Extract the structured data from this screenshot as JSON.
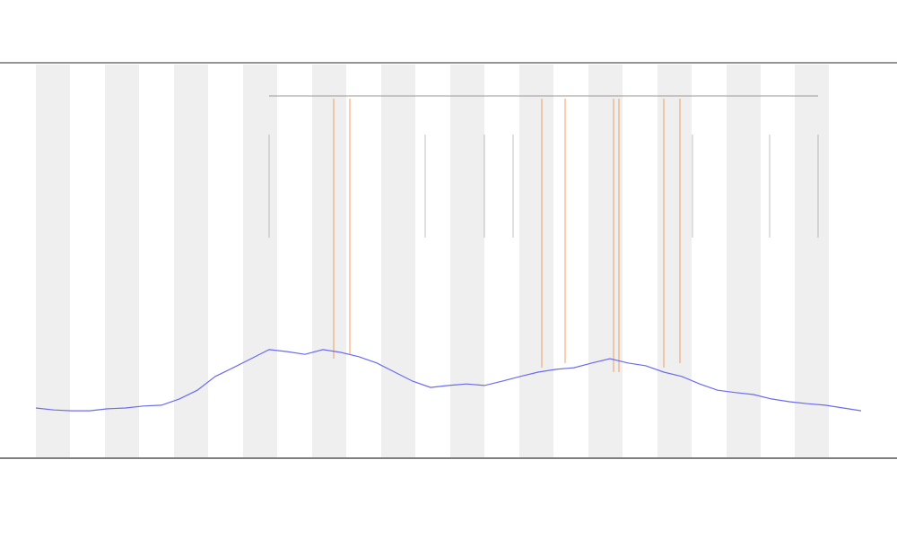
{
  "chart_data": {
    "type": "line",
    "x": [
      0,
      1,
      2,
      3,
      4,
      5,
      6,
      7,
      8,
      9,
      10,
      11,
      12,
      13,
      14,
      15,
      16,
      17,
      18,
      19,
      20,
      21,
      22,
      23,
      24,
      25,
      26,
      27,
      28,
      29,
      30,
      31,
      32,
      33,
      34,
      35,
      36,
      37,
      38,
      39,
      40,
      41,
      42,
      43,
      44,
      45,
      46
    ],
    "xlim": [
      0,
      46
    ],
    "ylim": [
      0,
      100
    ],
    "series": [
      {
        "color": "#6b6bf0",
        "values": [
          12.5,
          12.0,
          11.8,
          11.8,
          12.3,
          12.5,
          13.0,
          13.2,
          14.8,
          17.0,
          20.5,
          22.7,
          25.0,
          27.3,
          26.8,
          26.1,
          27.3,
          26.6,
          25.5,
          23.9,
          21.6,
          19.3,
          17.7,
          18.2,
          18.6,
          18.2,
          19.3,
          20.5,
          21.6,
          22.3,
          22.7,
          23.9,
          25.0,
          23.9,
          23.2,
          21.6,
          20.5,
          18.6,
          17.0,
          16.4,
          15.9,
          14.8,
          14.1,
          13.6,
          13.2,
          12.5,
          11.8
        ]
      }
    ]
  }
}
